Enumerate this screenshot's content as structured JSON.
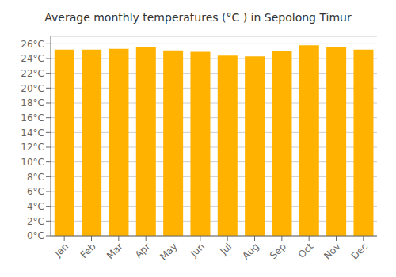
{
  "chart_data": {
    "type": "bar",
    "title": "Average monthly temperatures (°C ) in Sepolong Timur",
    "categories": [
      "Jan",
      "Feb",
      "Mar",
      "Apr",
      "May",
      "Jun",
      "Jul",
      "Aug",
      "Sep",
      "Oct",
      "Nov",
      "Dec"
    ],
    "values": [
      25.2,
      25.2,
      25.3,
      25.5,
      25.1,
      24.9,
      24.4,
      24.3,
      25.0,
      25.8,
      25.5,
      25.2
    ],
    "color": "#FFB300",
    "ylim": [
      0,
      27
    ],
    "yticks": [
      {
        "value": 0,
        "label": "0°C"
      },
      {
        "value": 2,
        "label": "2°C"
      },
      {
        "value": 4,
        "label": "4°C"
      },
      {
        "value": 6,
        "label": "6°C"
      },
      {
        "value": 8,
        "label": "8°C"
      },
      {
        "value": 10,
        "label": "10°C"
      },
      {
        "value": 12,
        "label": "12°C"
      },
      {
        "value": 14,
        "label": "14°C"
      },
      {
        "value": 16,
        "label": "16°C"
      },
      {
        "value": 18,
        "label": "18°C"
      },
      {
        "value": 20,
        "label": "20°C"
      },
      {
        "value": 22,
        "label": "22°C"
      },
      {
        "value": 24,
        "label": "24°C"
      },
      {
        "value": 26,
        "label": "26°C"
      }
    ],
    "grid": true
  }
}
